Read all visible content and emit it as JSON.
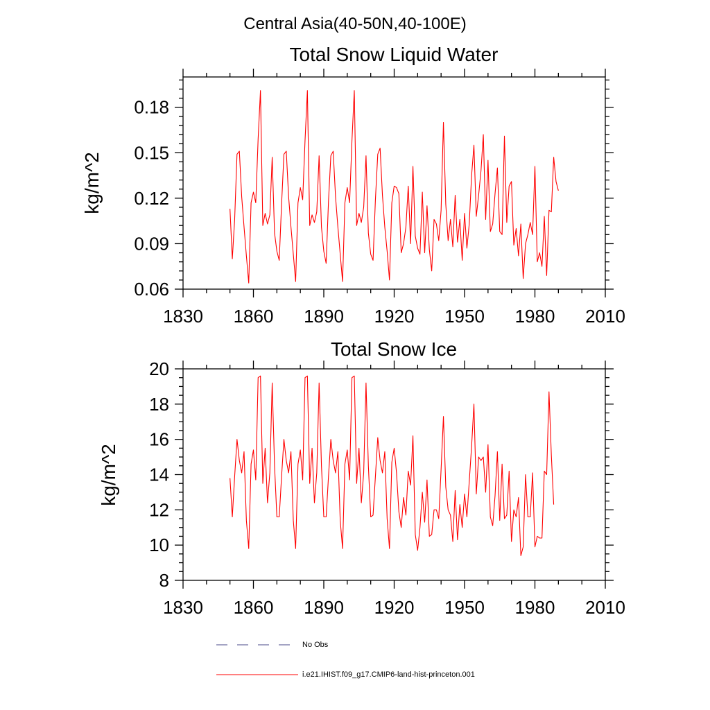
{
  "figure_title": "Central Asia(40-50N,40-100E)",
  "legend": {
    "items": [
      {
        "label": "No Obs",
        "color": "#4a4a8a",
        "style": "dashed"
      },
      {
        "label": "i.e21.IHIST.f09_g17.CMIP6-land-hist-princeton.001",
        "color": "#ff0000",
        "style": "solid"
      }
    ]
  },
  "chart_data": [
    {
      "type": "line",
      "title": "Total Snow Liquid Water",
      "xlabel": "",
      "ylabel": "kg/m^2",
      "xlim": [
        1830,
        2010
      ],
      "ylim": [
        0.06,
        0.2
      ],
      "x_ticks": [
        "1830",
        "1860",
        "1890",
        "1920",
        "1950",
        "1980",
        "2010"
      ],
      "y_ticks": [
        "0.06",
        "0.09",
        "0.12",
        "0.15",
        "0.18"
      ],
      "series": [
        {
          "name": "i.e21.IHIST.f09_g17.CMIP6-land-hist-princeton.001",
          "color": "#ff0000",
          "x_start": 1850,
          "values": [
            0.113,
            0.08,
            0.106,
            0.149,
            0.151,
            0.121,
            0.101,
            0.082,
            0.064,
            0.117,
            0.124,
            0.117,
            0.159,
            0.191,
            0.102,
            0.11,
            0.103,
            0.109,
            0.147,
            0.097,
            0.085,
            0.079,
            0.116,
            0.149,
            0.151,
            0.121,
            0.101,
            0.083,
            0.065,
            0.117,
            0.127,
            0.119,
            0.158,
            0.191,
            0.102,
            0.109,
            0.104,
            0.111,
            0.148,
            0.101,
            0.085,
            0.077,
            0.118,
            0.148,
            0.151,
            0.121,
            0.101,
            0.083,
            0.065,
            0.117,
            0.127,
            0.117,
            0.158,
            0.191,
            0.102,
            0.11,
            0.104,
            0.114,
            0.148,
            0.097,
            0.083,
            0.079,
            0.119,
            0.149,
            0.153,
            0.122,
            0.101,
            0.085,
            0.066,
            0.117,
            0.128,
            0.127,
            0.123,
            0.084,
            0.09,
            0.101,
            0.128,
            0.09,
            0.141,
            0.095,
            0.087,
            0.083,
            0.124,
            0.084,
            0.115,
            0.086,
            0.072,
            0.106,
            0.103,
            0.092,
            0.112,
            0.17,
            0.116,
            0.092,
            0.106,
            0.088,
            0.122,
            0.091,
            0.106,
            0.079,
            0.11,
            0.087,
            0.103,
            0.135,
            0.155,
            0.108,
            0.122,
            0.138,
            0.162,
            0.106,
            0.145,
            0.098,
            0.103,
            0.123,
            0.14,
            0.098,
            0.096,
            0.161,
            0.104,
            0.128,
            0.131,
            0.089,
            0.1,
            0.082,
            0.103,
            0.067,
            0.09,
            0.096,
            0.104,
            0.096,
            0.141,
            0.078,
            0.084,
            0.075,
            0.108,
            0.069,
            0.112,
            0.111,
            0.147,
            0.131,
            0.125
          ]
        }
      ]
    },
    {
      "type": "line",
      "title": "Total Snow Ice",
      "xlabel": "",
      "ylabel": "kg/m^2",
      "xlim": [
        1830,
        2010
      ],
      "ylim": [
        8,
        20
      ],
      "x_ticks": [
        "1830",
        "1860",
        "1890",
        "1920",
        "1950",
        "1980",
        "2010"
      ],
      "y_ticks": [
        "8",
        "10",
        "12",
        "14",
        "16",
        "18",
        "20"
      ],
      "series": [
        {
          "name": "i.e21.IHIST.f09_g17.CMIP6-land-hist-princeton.001",
          "color": "#ff0000",
          "x_start": 1850,
          "values": [
            13.8,
            11.6,
            13.9,
            16.0,
            14.8,
            14.1,
            15.3,
            11.4,
            9.8,
            14.6,
            15.4,
            13.7,
            19.5,
            19.6,
            13.5,
            15.5,
            12.4,
            14.1,
            19.2,
            14.5,
            11.6,
            11.6,
            13.9,
            16.0,
            14.8,
            14.1,
            15.3,
            11.4,
            9.8,
            14.6,
            15.4,
            13.7,
            19.5,
            19.6,
            13.5,
            15.5,
            12.4,
            14.1,
            19.2,
            14.5,
            11.6,
            11.6,
            13.9,
            16.0,
            14.8,
            14.1,
            15.3,
            11.4,
            9.8,
            14.6,
            15.4,
            13.7,
            19.5,
            19.6,
            13.5,
            15.5,
            12.4,
            14.1,
            19.2,
            14.5,
            11.6,
            11.7,
            13.9,
            16.1,
            14.8,
            14.1,
            15.3,
            11.5,
            9.8,
            14.7,
            15.5,
            14.1,
            11.9,
            11.0,
            12.7,
            11.7,
            14.2,
            13.4,
            16.2,
            10.6,
            9.7,
            11.0,
            13.0,
            11.3,
            13.7,
            10.5,
            10.6,
            12.0,
            12.0,
            11.5,
            14.3,
            17.3,
            13.3,
            12.0,
            11.7,
            10.2,
            13.1,
            10.3,
            12.3,
            11.0,
            12.9,
            11.6,
            13.6,
            15.6,
            18.0,
            12.9,
            15.0,
            14.8,
            15.0,
            13.0,
            15.7,
            11.6,
            11.1,
            12.8,
            15.3,
            11.4,
            14.6,
            11.5,
            11.7,
            14.2,
            10.2,
            12.0,
            11.6,
            12.7,
            9.4,
            9.9,
            14.0,
            11.6,
            11.6,
            14.1,
            9.9,
            10.5,
            10.4,
            10.4,
            14.2,
            14.0,
            18.7,
            15.1,
            12.3
          ]
        }
      ]
    }
  ]
}
